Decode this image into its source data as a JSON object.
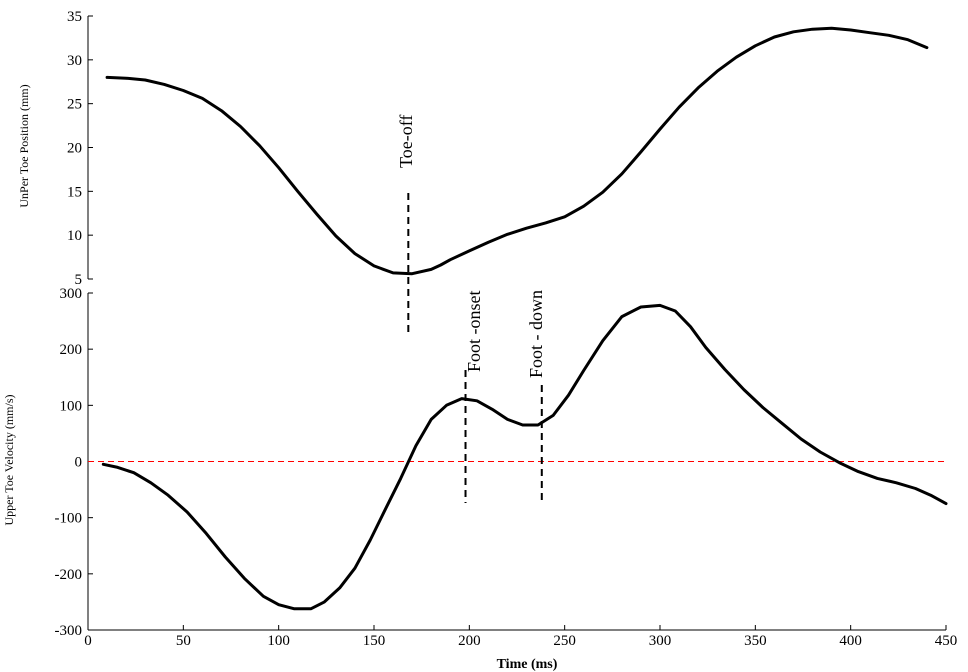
{
  "chart_data": [
    {
      "type": "line",
      "ylabel": "UnPer Toe Position (mm)",
      "xlabel": "",
      "xlim": [
        0,
        450
      ],
      "ylim": [
        5,
        35
      ],
      "yticks": [
        5,
        10,
        15,
        20,
        25,
        30,
        35
      ],
      "series": [
        {
          "x": [
            10,
            20,
            30,
            40,
            50,
            60,
            70,
            80,
            90,
            100,
            110,
            120,
            130,
            140,
            150,
            160,
            170,
            180,
            185,
            190,
            200,
            210,
            220,
            230,
            240,
            250,
            260,
            270,
            280,
            290,
            300,
            310,
            320,
            330,
            340,
            350,
            360,
            370,
            380,
            390,
            400,
            410,
            420,
            430,
            440
          ],
          "values": [
            28.0,
            27.9,
            27.7,
            27.2,
            26.5,
            25.6,
            24.2,
            22.4,
            20.2,
            17.7,
            15.0,
            12.4,
            9.9,
            7.9,
            6.5,
            5.7,
            5.6,
            6.1,
            6.6,
            7.2,
            8.2,
            9.2,
            10.1,
            10.8,
            11.4,
            12.1,
            13.3,
            14.9,
            17.0,
            19.5,
            22.1,
            24.6,
            26.8,
            28.7,
            30.3,
            31.6,
            32.6,
            33.2,
            33.5,
            33.6,
            33.4,
            33.1,
            32.8,
            32.3,
            31.4
          ]
        }
      ],
      "annotations": [
        {
          "text": "Toe-off",
          "x": 168
        }
      ]
    },
    {
      "type": "line",
      "ylabel": "Upper Toe Velocity (mm/s)",
      "xlabel": "Time (ms)",
      "xlim": [
        0,
        450
      ],
      "ylim": [
        -300,
        300
      ],
      "xticks": [
        0,
        50,
        100,
        150,
        200,
        250,
        300,
        350,
        400,
        450
      ],
      "yticks": [
        -300,
        -200,
        -100,
        0,
        100,
        200,
        300
      ],
      "series": [
        {
          "x": [
            8,
            15,
            24,
            33,
            42,
            52,
            62,
            72,
            82,
            92,
            100,
            108,
            117,
            124,
            132,
            140,
            148,
            156,
            164,
            172,
            180,
            188,
            196,
            204,
            212,
            220,
            228,
            236,
            244,
            252,
            260,
            270,
            280,
            290,
            300,
            308,
            316,
            324,
            334,
            344,
            354,
            364,
            374,
            384,
            394,
            404,
            414,
            424,
            434,
            442,
            450
          ],
          "values": [
            -5,
            -10,
            -20,
            -38,
            -60,
            -90,
            -128,
            -170,
            -208,
            -240,
            -255,
            -262,
            -262,
            -250,
            -225,
            -190,
            -140,
            -85,
            -30,
            28,
            75,
            100,
            112,
            108,
            93,
            75,
            65,
            65,
            82,
            118,
            162,
            215,
            258,
            275,
            278,
            268,
            240,
            203,
            164,
            128,
            96,
            68,
            40,
            17,
            -2,
            -18,
            -30,
            -38,
            -48,
            -60,
            -75
          ]
        }
      ],
      "reference_line": {
        "y": 0,
        "color": "#ff0000",
        "style": "dashed"
      },
      "annotations": [
        {
          "text": "Foot -onset",
          "x": 198
        },
        {
          "text": "Foot - down",
          "x": 238
        }
      ]
    }
  ]
}
